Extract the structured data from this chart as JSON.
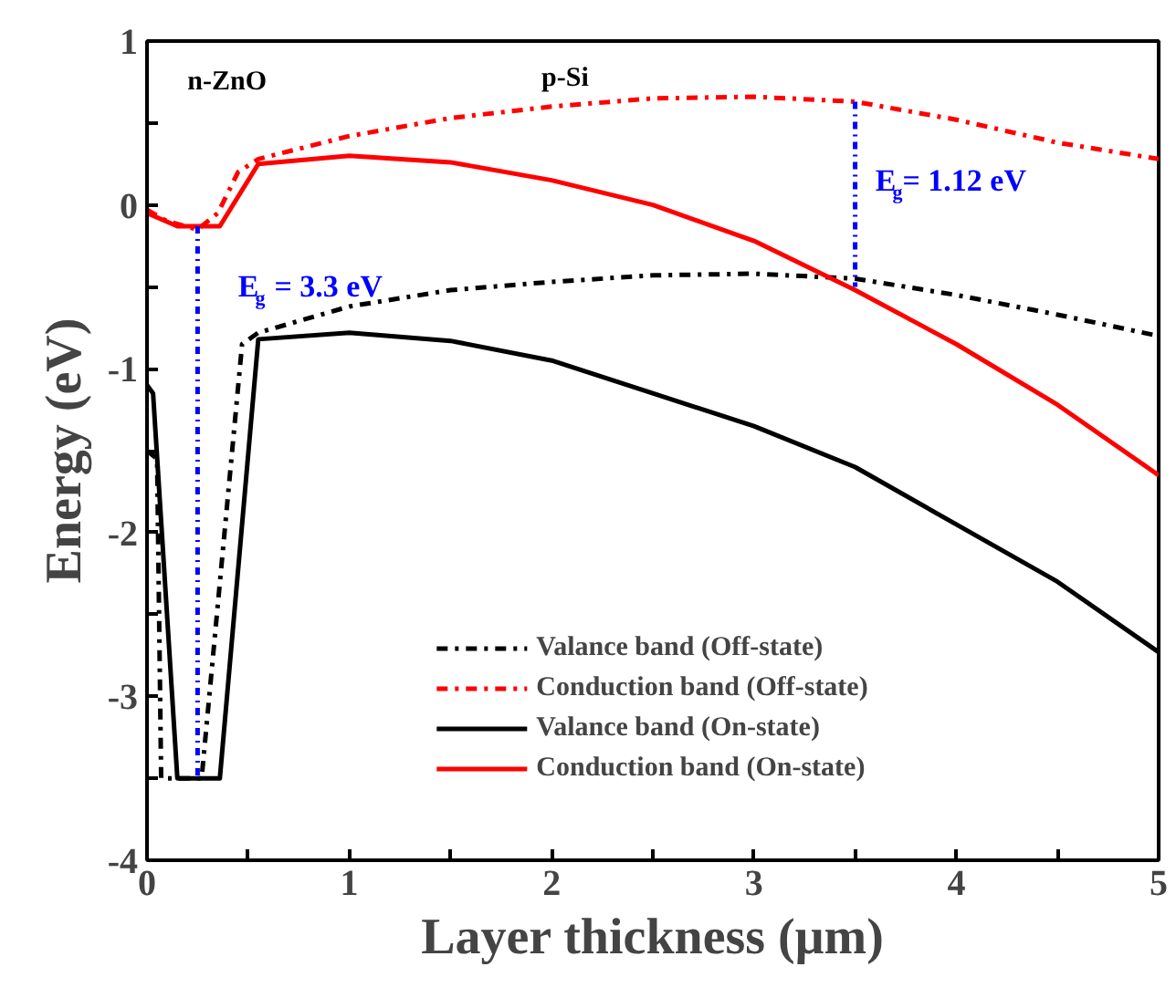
{
  "chart_data": {
    "type": "line",
    "xlabel": "Layer thickness (μm)",
    "ylabel": "Energy (eV)",
    "xlim": [
      0,
      5
    ],
    "ylim": [
      -4,
      1
    ],
    "xticks": [
      0,
      {
        "value": 0.5,
        "label": null
      },
      1,
      {
        "value": 1.5,
        "label": null
      },
      2,
      {
        "value": 2.5,
        "label": null
      },
      3,
      {
        "value": 3.5,
        "label": null
      },
      4,
      {
        "value": 4.5,
        "label": null
      },
      5
    ],
    "yticks": [
      -4,
      {
        "value": -3.5,
        "label": null
      },
      -3,
      {
        "value": -2.5,
        "label": null
      },
      -2,
      {
        "value": -1.5,
        "label": null
      },
      -1,
      {
        "value": -0.5,
        "label": null
      },
      0,
      {
        "value": 0.5,
        "label": null
      },
      1
    ],
    "grid": false,
    "legend": "bottom",
    "marker": "none",
    "series": [
      {
        "name": "Valance band (Off-state)",
        "color": "#000000",
        "line_style": "dashed",
        "x": [
          0,
          0.05,
          0.07,
          0.27,
          0.47,
          0.55,
          1,
          1.5,
          2,
          2.5,
          3,
          3.5,
          4,
          4.5,
          5
        ],
        "values": [
          -1.5,
          -1.55,
          -3.5,
          -3.5,
          -0.85,
          -0.78,
          -0.62,
          -0.52,
          -0.47,
          -0.43,
          -0.42,
          -0.45,
          -0.55,
          -0.67,
          -0.8
        ]
      },
      {
        "name": "Conduction band (Off-state)",
        "color": "#ff0000",
        "line_style": "dashed",
        "x": [
          0,
          0.1,
          0.25,
          0.35,
          0.45,
          0.55,
          1,
          1.5,
          2,
          2.5,
          3,
          3.5,
          4,
          4.5,
          5
        ],
        "values": [
          -0.03,
          -0.1,
          -0.15,
          -0.05,
          0.2,
          0.28,
          0.42,
          0.53,
          0.6,
          0.65,
          0.66,
          0.63,
          0.52,
          0.38,
          0.28
        ]
      },
      {
        "name": "Valance band (On-state)",
        "color": "#000000",
        "line_style": "solid",
        "x": [
          0,
          0.03,
          0.15,
          0.36,
          0.55,
          1,
          1.5,
          2,
          2.5,
          3,
          3.5,
          4,
          4.5,
          5
        ],
        "values": [
          -1.1,
          -1.15,
          -3.5,
          -3.5,
          -0.82,
          -0.78,
          -0.83,
          -0.95,
          -1.15,
          -1.35,
          -1.6,
          -1.95,
          -2.3,
          -2.73
        ]
      },
      {
        "name": "Conduction band (On-state)",
        "color": "#ff0000",
        "line_style": "solid",
        "x": [
          0,
          0.15,
          0.36,
          0.55,
          1,
          1.5,
          2,
          2.5,
          3,
          3.5,
          4,
          4.5,
          5
        ],
        "values": [
          -0.05,
          -0.13,
          -0.13,
          0.25,
          0.3,
          0.26,
          0.15,
          0.0,
          -0.22,
          -0.52,
          -0.85,
          -1.22,
          -1.65
        ]
      },
      {
        "color": "#0000ff",
        "line_style": "dotted",
        "x": [
          0.25,
          0.25
        ],
        "values": [
          -0.13,
          -3.5
        ]
      },
      {
        "color": "#0000ff",
        "line_style": "dotted",
        "x": [
          3.5,
          3.5
        ],
        "values": [
          0.63,
          -0.5
        ]
      }
    ],
    "annotations": [
      "n-ZnO",
      "p-Si",
      "E$_{g}$ = 3.3 eV",
      "E$_{g}$= 1.12 eV"
    ]
  }
}
